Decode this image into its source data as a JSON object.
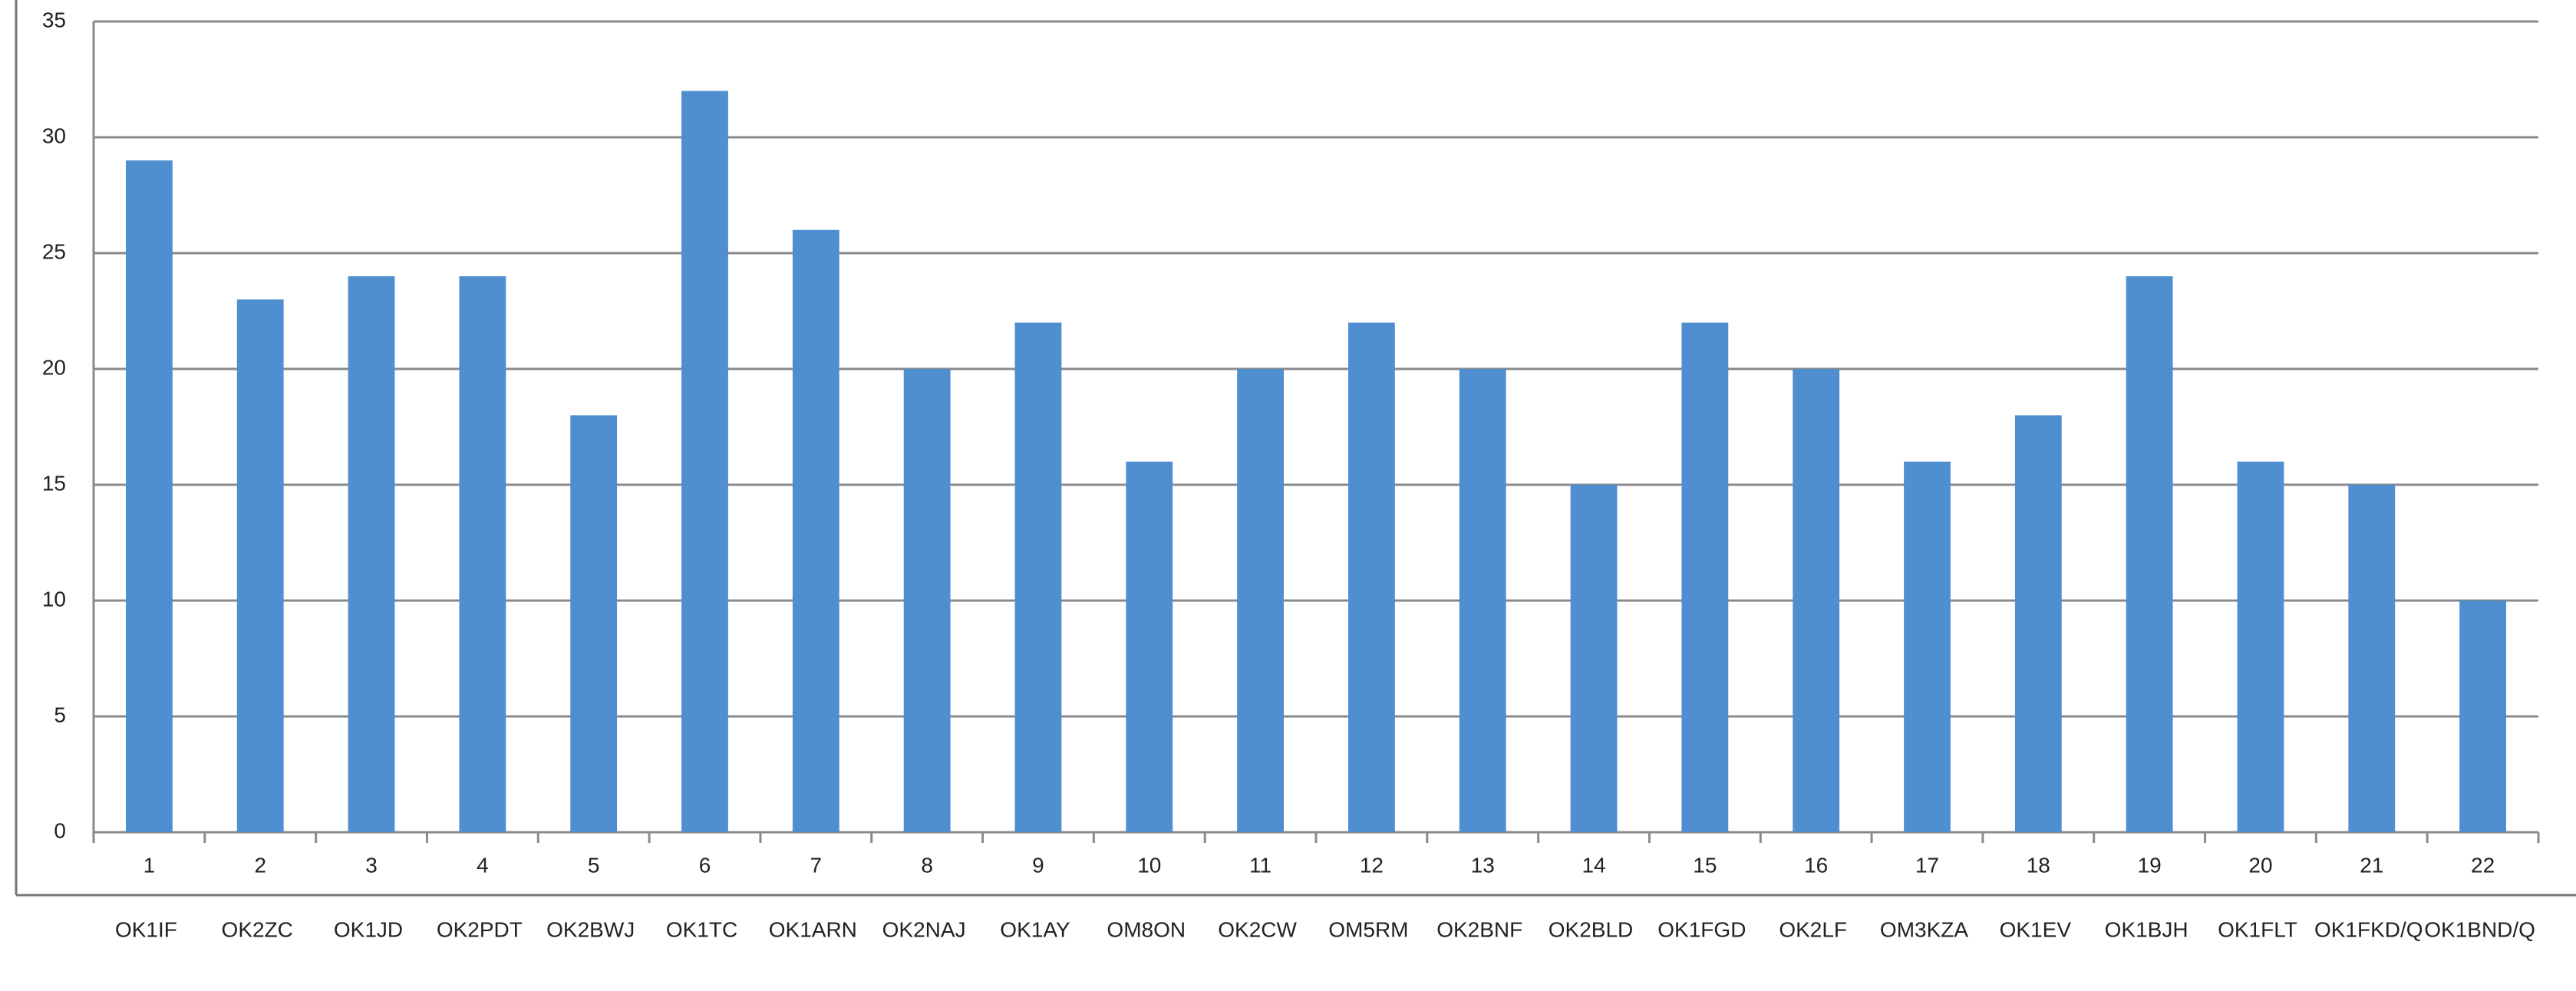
{
  "chart_data": {
    "type": "bar",
    "categories": [
      "1",
      "2",
      "3",
      "4",
      "5",
      "6",
      "7",
      "8",
      "9",
      "10",
      "11",
      "12",
      "13",
      "14",
      "15",
      "16",
      "17",
      "18",
      "19",
      "20",
      "21",
      "22"
    ],
    "category_names": [
      "OK1IF",
      "OK2ZC",
      "OK1JD",
      "OK2PDT",
      "OK2BWJ",
      "OK1TC",
      "OK1ARN",
      "OK2NAJ",
      "OK1AY",
      "OM8ON",
      "OK2CW",
      "OM5RM",
      "OK2BNF",
      "OK2BLD",
      "OK1FGD",
      "OK2LF",
      "OM3KZA",
      "OK1EV",
      "OK1BJH",
      "OK1FLT",
      "OK1FKD/Q",
      "OK1BND/Q"
    ],
    "values": [
      29,
      23,
      24,
      24,
      18,
      32,
      26,
      20,
      22,
      16,
      20,
      22,
      20,
      15,
      22,
      20,
      16,
      18,
      24,
      16,
      15,
      10
    ],
    "color": "#4f8fcf",
    "ylim": [
      0,
      35
    ],
    "yticks": [
      0,
      5,
      10,
      15,
      20,
      25,
      30,
      35
    ],
    "grid": true
  }
}
